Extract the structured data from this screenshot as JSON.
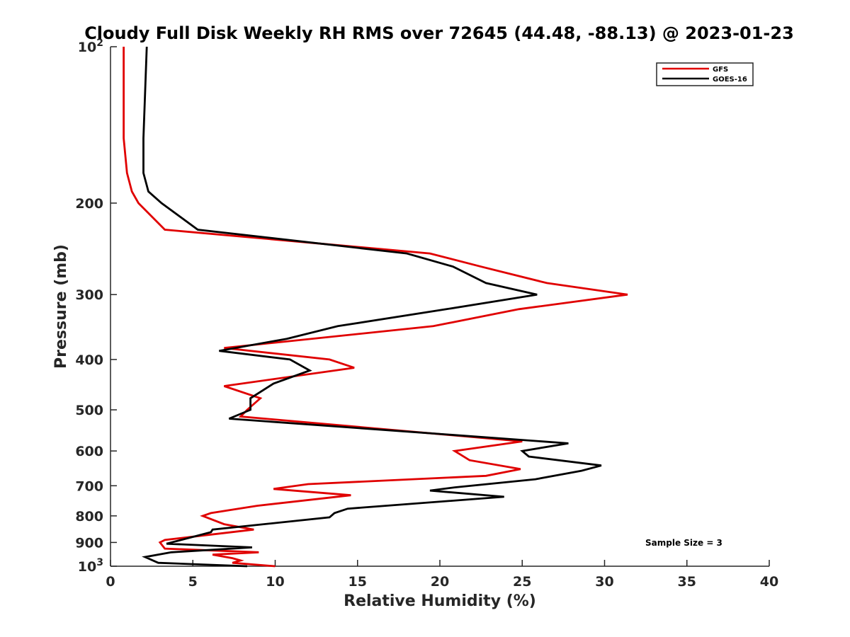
{
  "chart_data": {
    "type": "line",
    "title": "Cloudy Full Disk Weekly RH RMS over 72645 (44.48, -88.13) @ 2023-01-23",
    "xlabel": "Relative Humidity (%)",
    "ylabel": "Pressure (mb)",
    "xlim": [
      0,
      40
    ],
    "ylim": [
      100,
      1000
    ],
    "y_scale": "log",
    "y_reversed": true,
    "grid": false,
    "legend_position": "top-right",
    "x_ticks": [
      {
        "value": 0,
        "label": "0"
      },
      {
        "value": 5,
        "label": "5"
      },
      {
        "value": 10,
        "label": "10"
      },
      {
        "value": 15,
        "label": "15"
      },
      {
        "value": 20,
        "label": "20"
      },
      {
        "value": 25,
        "label": "25"
      },
      {
        "value": 30,
        "label": "30"
      },
      {
        "value": 35,
        "label": "35"
      },
      {
        "value": 40,
        "label": "40"
      }
    ],
    "y_ticks": [
      {
        "value": 100,
        "label": "10",
        "sup": "2"
      },
      {
        "value": 200,
        "label": "200",
        "sup": ""
      },
      {
        "value": 300,
        "label": "300",
        "sup": ""
      },
      {
        "value": 400,
        "label": "400",
        "sup": ""
      },
      {
        "value": 500,
        "label": "500",
        "sup": ""
      },
      {
        "value": 600,
        "label": "600",
        "sup": ""
      },
      {
        "value": 700,
        "label": "700",
        "sup": ""
      },
      {
        "value": 800,
        "label": "800",
        "sup": ""
      },
      {
        "value": 900,
        "label": "900",
        "sup": ""
      },
      {
        "value": 1000,
        "label": "10",
        "sup": "3"
      }
    ],
    "series": [
      {
        "name": "GFS",
        "color": "#e00000",
        "points": [
          [
            0.8,
            100
          ],
          [
            0.8,
            150
          ],
          [
            1.0,
            175
          ],
          [
            1.3,
            190
          ],
          [
            1.7,
            200
          ],
          [
            3.3,
            225
          ],
          [
            19.4,
            250
          ],
          [
            22.5,
            265
          ],
          [
            26.5,
            285
          ],
          [
            31.4,
            300
          ],
          [
            24.8,
            320
          ],
          [
            19.6,
            345
          ],
          [
            6.9,
            380
          ],
          [
            13.3,
            400
          ],
          [
            14.8,
            415
          ],
          [
            6.9,
            450
          ],
          [
            9.1,
            475
          ],
          [
            8.3,
            500
          ],
          [
            7.9,
            515
          ],
          [
            25.0,
            575
          ],
          [
            20.9,
            600
          ],
          [
            21.8,
            625
          ],
          [
            24.9,
            650
          ],
          [
            22.8,
            670
          ],
          [
            12.0,
            695
          ],
          [
            9.9,
            710
          ],
          [
            14.6,
            730
          ],
          [
            8.9,
            765
          ],
          [
            6.1,
            790
          ],
          [
            5.6,
            800
          ],
          [
            6.9,
            830
          ],
          [
            8.7,
            850
          ],
          [
            3.3,
            890
          ],
          [
            3.0,
            900
          ],
          [
            3.3,
            925
          ],
          [
            9.0,
            940
          ],
          [
            6.2,
            950
          ],
          [
            7.4,
            965
          ],
          [
            7.9,
            975
          ],
          [
            7.4,
            985
          ],
          [
            10.0,
            1000
          ]
        ]
      },
      {
        "name": "GOES-16",
        "color": "#000000",
        "points": [
          [
            2.2,
            100
          ],
          [
            2.0,
            150
          ],
          [
            2.0,
            175
          ],
          [
            2.3,
            190
          ],
          [
            3.1,
            200
          ],
          [
            5.3,
            225
          ],
          [
            18.0,
            250
          ],
          [
            20.8,
            265
          ],
          [
            22.8,
            285
          ],
          [
            25.9,
            300
          ],
          [
            20.4,
            320
          ],
          [
            13.8,
            345
          ],
          [
            10.7,
            365
          ],
          [
            6.6,
            385
          ],
          [
            10.9,
            400
          ],
          [
            12.1,
            420
          ],
          [
            9.9,
            445
          ],
          [
            8.5,
            475
          ],
          [
            8.5,
            500
          ],
          [
            7.2,
            520
          ],
          [
            27.8,
            580
          ],
          [
            25.0,
            600
          ],
          [
            25.4,
            615
          ],
          [
            29.8,
            640
          ],
          [
            28.6,
            655
          ],
          [
            25.8,
            680
          ],
          [
            20.9,
            705
          ],
          [
            19.4,
            715
          ],
          [
            23.9,
            735
          ],
          [
            14.4,
            775
          ],
          [
            13.6,
            790
          ],
          [
            13.3,
            805
          ],
          [
            6.2,
            850
          ],
          [
            6.1,
            860
          ],
          [
            3.4,
            905
          ],
          [
            8.6,
            920
          ],
          [
            3.7,
            940
          ],
          [
            2.1,
            960
          ],
          [
            2.9,
            985
          ],
          [
            8.3,
            1000
          ]
        ]
      }
    ],
    "annotations": [
      {
        "text": "Sample Size = 3"
      }
    ]
  }
}
